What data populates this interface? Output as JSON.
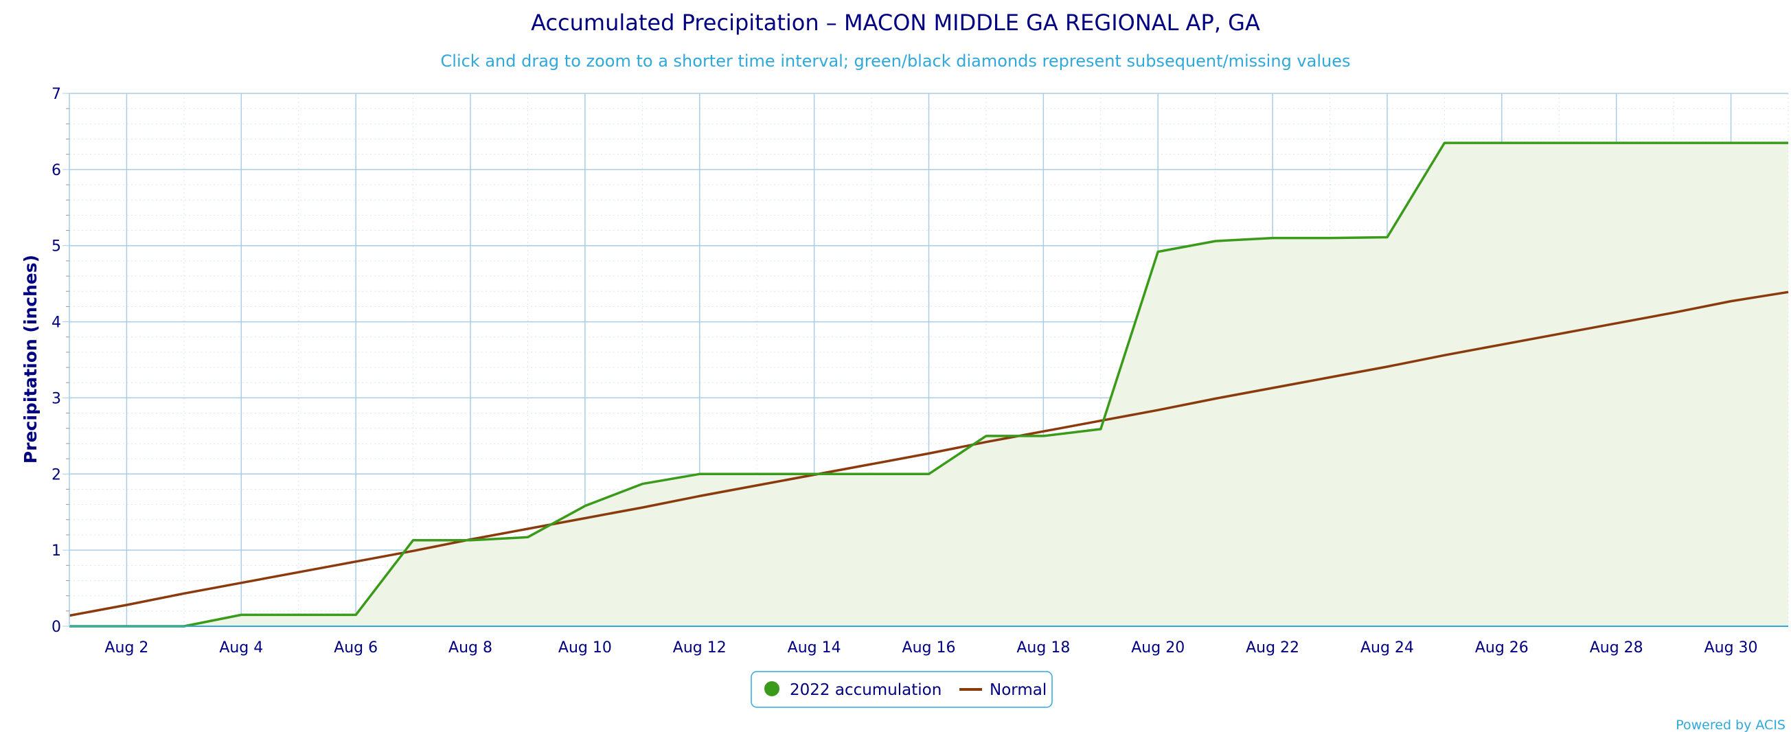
{
  "chart_data": {
    "type": "line",
    "title": "Accumulated Precipitation – MACON MIDDLE GA REGIONAL AP, GA",
    "subtitle": "Click and drag to zoom to a shorter time interval; green/black diamonds represent subsequent/missing values",
    "ylabel": "Precipitation (inches)",
    "xlabel": "",
    "ylim": [
      0,
      7
    ],
    "y_ticks": [
      0,
      1,
      2,
      3,
      4,
      5,
      6,
      7
    ],
    "x_tick_labels": [
      "Aug 2",
      "Aug 4",
      "Aug 6",
      "Aug 8",
      "Aug 10",
      "Aug 12",
      "Aug 14",
      "Aug 16",
      "Aug 18",
      "Aug 20",
      "Aug 22",
      "Aug 24",
      "Aug 26",
      "Aug 28",
      "Aug 30"
    ],
    "x": [
      "Aug 1",
      "Aug 2",
      "Aug 3",
      "Aug 4",
      "Aug 5",
      "Aug 6",
      "Aug 7",
      "Aug 8",
      "Aug 9",
      "Aug 10",
      "Aug 11",
      "Aug 12",
      "Aug 13",
      "Aug 14",
      "Aug 15",
      "Aug 16",
      "Aug 17",
      "Aug 18",
      "Aug 19",
      "Aug 20",
      "Aug 21",
      "Aug 22",
      "Aug 23",
      "Aug 24",
      "Aug 25",
      "Aug 26",
      "Aug 27",
      "Aug 28",
      "Aug 29",
      "Aug 30",
      "Aug 31"
    ],
    "grid": true,
    "legend_position": "bottom-center",
    "series": [
      {
        "name": "2022 accumulation",
        "color": "#3a9a1a",
        "fill": "#eef5e6",
        "values": [
          0.0,
          0.0,
          0.0,
          0.15,
          0.15,
          0.15,
          1.13,
          1.13,
          1.17,
          1.58,
          1.87,
          2.0,
          2.0,
          2.0,
          2.0,
          2.0,
          2.5,
          2.5,
          2.59,
          4.92,
          5.06,
          5.1,
          5.1,
          5.11,
          6.35,
          6.35,
          6.35,
          6.35,
          6.35,
          6.35,
          6.35
        ]
      },
      {
        "name": "Normal",
        "color": "#8b3a0e",
        "values": [
          0.14,
          0.28,
          0.43,
          0.57,
          0.71,
          0.85,
          0.99,
          1.14,
          1.28,
          1.42,
          1.56,
          1.71,
          1.85,
          1.99,
          2.13,
          2.27,
          2.42,
          2.56,
          2.7,
          2.84,
          2.99,
          3.13,
          3.27,
          3.41,
          3.56,
          3.7,
          3.84,
          3.98,
          4.12,
          4.27,
          4.39
        ]
      }
    ]
  },
  "credit": "Powered by ACIS"
}
